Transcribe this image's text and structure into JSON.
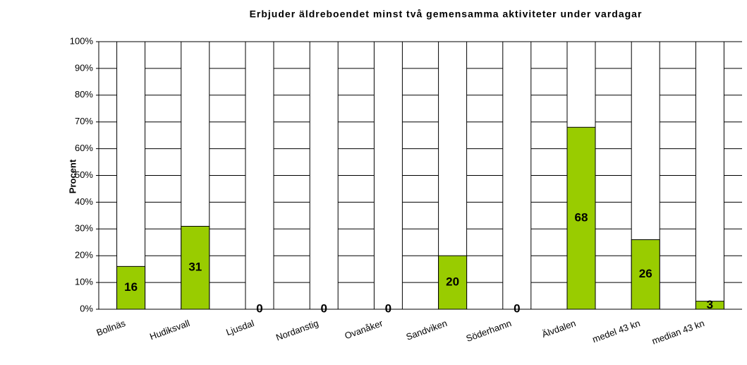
{
  "chart_data": {
    "type": "bar",
    "title": "Erbjuder äldreboendet minst två gemensamma aktiviteter under vardagar",
    "y_label": "Procent",
    "categories": [
      "Bollnäs",
      "Hudiksvall",
      "Ljusdal",
      "Nordanstig",
      "Ovanåker",
      "Sandviken",
      "Söderhamn",
      "Älvdalen",
      "medel 43 kn",
      "median 43 kn"
    ],
    "values": [
      16,
      31,
      0,
      0,
      0,
      20,
      0,
      68,
      26,
      3
    ],
    "color": "#99cc00",
    "ylim": [
      0,
      100
    ],
    "yticks": [
      {
        "value": 0,
        "label": "0%"
      },
      {
        "value": 10,
        "label": "10%"
      },
      {
        "value": 20,
        "label": "20%"
      },
      {
        "value": 30,
        "label": "30%"
      },
      {
        "value": 40,
        "label": "40%"
      },
      {
        "value": 50,
        "label": "50%"
      },
      {
        "value": 60,
        "label": "60%"
      },
      {
        "value": 70,
        "label": "70%"
      },
      {
        "value": 80,
        "label": "80%"
      },
      {
        "value": 90,
        "label": "90%"
      },
      {
        "value": 100,
        "label": "100%"
      }
    ],
    "grid": true
  }
}
